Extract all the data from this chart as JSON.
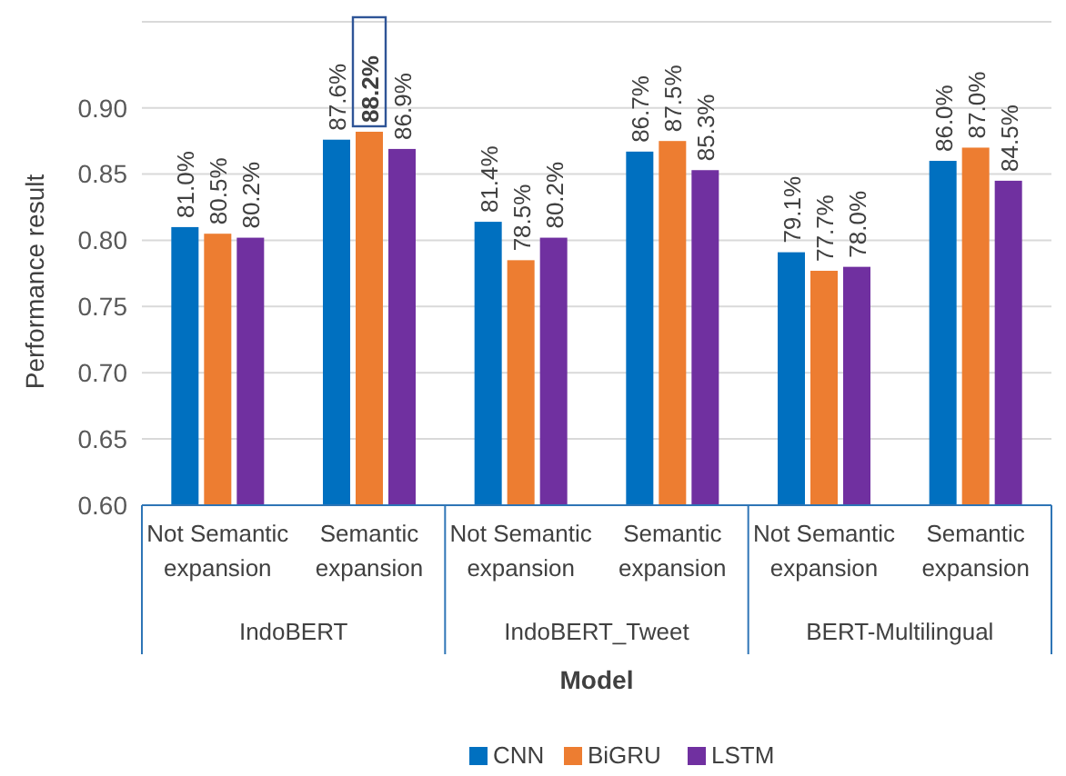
{
  "chart_data": {
    "type": "bar",
    "xlabel": "Model",
    "ylabel": "Performance result",
    "categories": [
      "Not Semantic expansion",
      "Semantic expansion",
      "Not Semantic expansion",
      "Semantic expansion",
      "Not Semantic expansion",
      "Semantic expansion"
    ],
    "annotations": [
      "IndoBERT",
      "IndoBERT_Tweet",
      "BERT-Multilingual"
    ],
    "series": [
      {
        "name": "CNN",
        "color": "#0070c0",
        "values": [
          0.81,
          0.876,
          0.814,
          0.867,
          0.791,
          0.86
        ],
        "value_labels": [
          "81.0%",
          "87.6%",
          "81.4%",
          "86.7%",
          "79.1%",
          "86.0%"
        ]
      },
      {
        "name": "BiGRU",
        "color": "#ed7d31",
        "values": [
          0.805,
          0.882,
          0.785,
          0.875,
          0.777,
          0.87
        ],
        "value_labels": [
          "80.5%",
          "88.2%",
          "78.5%",
          "87.5%",
          "77.7%",
          "87.0%"
        ]
      },
      {
        "name": "LSTM",
        "color": "#7030a0",
        "values": [
          0.802,
          0.869,
          0.802,
          0.853,
          0.78,
          0.845
        ],
        "value_labels": [
          "80.2%",
          "86.9%",
          "80.2%",
          "85.3%",
          "78.0%",
          "84.5%"
        ]
      }
    ],
    "ylim": [
      0.6,
      0.965
    ],
    "yticks": [
      {
        "value": 0.6,
        "label": "0.60"
      },
      {
        "value": 0.65,
        "label": "0.65"
      },
      {
        "value": 0.7,
        "label": "0.70"
      },
      {
        "value": 0.75,
        "label": "0.75"
      },
      {
        "value": 0.8,
        "label": "0.80"
      },
      {
        "value": 0.85,
        "label": "0.85"
      },
      {
        "value": 0.9,
        "label": "0.90"
      }
    ],
    "grid": "y",
    "legend": "bottom"
  }
}
